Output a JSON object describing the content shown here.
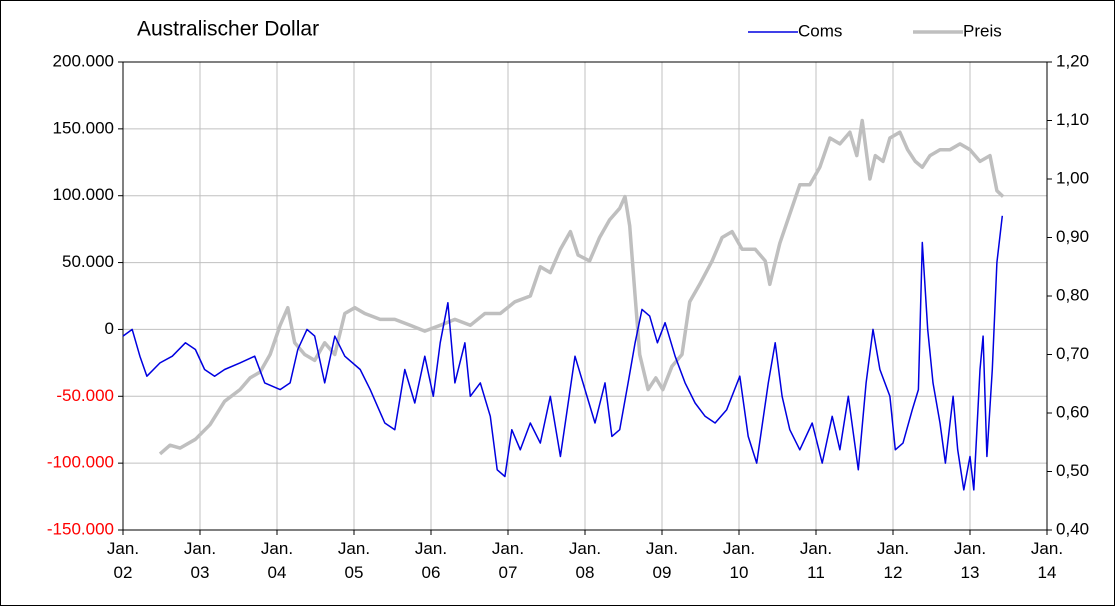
{
  "chart_data": {
    "type": "line",
    "title": "Australischer Dollar",
    "grid": true,
    "legend": "top-right",
    "negative_label_color": "#ff0000",
    "xlim": [
      2002,
      2014
    ],
    "xticks": [
      {
        "value": 2002,
        "label": "Jan. 02"
      },
      {
        "value": 2003,
        "label": "Jan. 03"
      },
      {
        "value": 2004,
        "label": "Jan. 04"
      },
      {
        "value": 2005,
        "label": "Jan. 05"
      },
      {
        "value": 2006,
        "label": "Jan. 06"
      },
      {
        "value": 2007,
        "label": "Jan. 07"
      },
      {
        "value": 2008,
        "label": "Jan. 08"
      },
      {
        "value": 2009,
        "label": "Jan. 09"
      },
      {
        "value": 2010,
        "label": "Jan. 10"
      },
      {
        "value": 2011,
        "label": "Jan. 11"
      },
      {
        "value": 2012,
        "label": "Jan. 12"
      },
      {
        "value": 2013,
        "label": "Jan. 13"
      },
      {
        "value": 2014,
        "label": "Jan. 14"
      }
    ],
    "ylim": [
      -150000,
      200000
    ],
    "yticks": [
      {
        "value": -150000,
        "label": "-150.000"
      },
      {
        "value": -100000,
        "label": "-100.000"
      },
      {
        "value": -50000,
        "label": "-50.000"
      },
      0,
      {
        "value": 50000,
        "label": "50.000"
      },
      {
        "value": 100000,
        "label": "100.000"
      },
      {
        "value": 150000,
        "label": "150.000"
      },
      {
        "value": 200000,
        "label": "200.000"
      }
    ],
    "y2lim": [
      0.4,
      1.2
    ],
    "y2ticks": [
      {
        "value": 0.4,
        "label": "0,40"
      },
      {
        "value": 0.5,
        "label": "0,50"
      },
      {
        "value": 0.6,
        "label": "0,60"
      },
      {
        "value": 0.7,
        "label": "0,70"
      },
      {
        "value": 0.8,
        "label": "0,80"
      },
      {
        "value": 0.9,
        "label": "0,90"
      },
      {
        "value": 1.0,
        "label": "1,00"
      },
      {
        "value": 1.1,
        "label": "1,10"
      },
      {
        "value": 1.2,
        "label": "1,20"
      }
    ],
    "series": [
      {
        "name": "Preis",
        "color": "#bfbfbf",
        "axis": "y2",
        "x": [
          2002.48,
          2002.61,
          2002.74,
          2002.94,
          2003.13,
          2003.32,
          2003.52,
          2003.65,
          2003.78,
          2003.91,
          2004.04,
          2004.14,
          2004.23,
          2004.36,
          2004.49,
          2004.62,
          2004.75,
          2004.88,
          2005.01,
          2005.14,
          2005.34,
          2005.53,
          2005.73,
          2005.92,
          2006.12,
          2006.31,
          2006.51,
          2006.7,
          2006.9,
          2007.09,
          2007.29,
          2007.42,
          2007.55,
          2007.68,
          2007.81,
          2007.91,
          2008.06,
          2008.19,
          2008.32,
          2008.45,
          2008.52,
          2008.58,
          2008.65,
          2008.71,
          2008.82,
          2008.92,
          2009.01,
          2009.13,
          2009.26,
          2009.36,
          2009.49,
          2009.65,
          2009.78,
          2009.91,
          2010.04,
          2010.21,
          2010.34,
          2010.4,
          2010.53,
          2010.66,
          2010.79,
          2010.92,
          2011.05,
          2011.18,
          2011.31,
          2011.44,
          2011.53,
          2011.6,
          2011.7,
          2011.77,
          2011.87,
          2011.96,
          2012.09,
          2012.19,
          2012.29,
          2012.38,
          2012.48,
          2012.61,
          2012.74,
          2012.87,
          2013.0,
          2013.13,
          2013.26,
          2013.35,
          2013.43
        ],
        "values": [
          0.53,
          0.545,
          0.54,
          0.555,
          0.58,
          0.62,
          0.64,
          0.66,
          0.67,
          0.7,
          0.75,
          0.78,
          0.72,
          0.7,
          0.69,
          0.72,
          0.7,
          0.77,
          0.78,
          0.77,
          0.76,
          0.76,
          0.75,
          0.74,
          0.75,
          0.76,
          0.75,
          0.77,
          0.77,
          0.79,
          0.8,
          0.85,
          0.84,
          0.88,
          0.91,
          0.87,
          0.86,
          0.9,
          0.93,
          0.95,
          0.97,
          0.92,
          0.8,
          0.7,
          0.64,
          0.66,
          0.64,
          0.68,
          0.7,
          0.79,
          0.82,
          0.86,
          0.9,
          0.91,
          0.88,
          0.88,
          0.86,
          0.82,
          0.89,
          0.94,
          0.99,
          0.99,
          1.02,
          1.07,
          1.06,
          1.08,
          1.04,
          1.1,
          1.0,
          1.04,
          1.03,
          1.07,
          1.08,
          1.05,
          1.03,
          1.02,
          1.04,
          1.05,
          1.05,
          1.06,
          1.05,
          1.03,
          1.04,
          0.98,
          0.97
        ]
      },
      {
        "name": "Coms",
        "color": "#0000e0",
        "x": [
          2002.0,
          2002.12,
          2002.22,
          2002.31,
          2002.48,
          2002.64,
          2002.81,
          2002.94,
          2003.06,
          2003.19,
          2003.32,
          2003.52,
          2003.71,
          2003.84,
          2004.04,
          2004.17,
          2004.27,
          2004.39,
          2004.49,
          2004.62,
          2004.75,
          2004.88,
          2005.08,
          2005.21,
          2005.4,
          2005.53,
          2005.66,
          2005.79,
          2005.92,
          2006.03,
          2006.12,
          2006.22,
          2006.31,
          2006.44,
          2006.51,
          2006.64,
          2006.77,
          2006.86,
          2006.96,
          2007.05,
          2007.16,
          2007.29,
          2007.42,
          2007.55,
          2007.68,
          2007.87,
          2008.0,
          2008.13,
          2008.26,
          2008.35,
          2008.45,
          2008.56,
          2008.65,
          2008.74,
          2008.84,
          2008.94,
          2009.04,
          2009.17,
          2009.3,
          2009.43,
          2009.56,
          2009.69,
          2009.84,
          2010.01,
          2010.12,
          2010.23,
          2010.38,
          2010.47,
          2010.56,
          2010.66,
          2010.79,
          2010.95,
          2011.08,
          2011.21,
          2011.31,
          2011.42,
          2011.55,
          2011.65,
          2011.74,
          2011.83,
          2011.96,
          2012.03,
          2012.13,
          2012.25,
          2012.33,
          2012.38,
          2012.45,
          2012.52,
          2012.61,
          2012.68,
          2012.78,
          2012.84,
          2012.92,
          2013.0,
          2013.05,
          2013.13,
          2013.17,
          2013.22,
          2013.29,
          2013.35,
          2013.42
        ],
        "values": [
          -5000,
          0,
          -20000,
          -35000,
          -25000,
          -20000,
          -10000,
          -15000,
          -30000,
          -35000,
          -30000,
          -25000,
          -20000,
          -40000,
          -45000,
          -40000,
          -15000,
          0,
          -5000,
          -40000,
          -5000,
          -20000,
          -30000,
          -45000,
          -70000,
          -75000,
          -30000,
          -55000,
          -20000,
          -50000,
          -10000,
          20000,
          -40000,
          -10000,
          -50000,
          -40000,
          -65000,
          -105000,
          -110000,
          -75000,
          -90000,
          -70000,
          -85000,
          -50000,
          -95000,
          -20000,
          -45000,
          -70000,
          -40000,
          -80000,
          -75000,
          -40000,
          -10000,
          15000,
          10000,
          -10000,
          5000,
          -20000,
          -40000,
          -55000,
          -65000,
          -70000,
          -60000,
          -35000,
          -80000,
          -100000,
          -40000,
          -10000,
          -50000,
          -75000,
          -90000,
          -70000,
          -100000,
          -65000,
          -90000,
          -50000,
          -105000,
          -40000,
          0,
          -30000,
          -50000,
          -90000,
          -85000,
          -60000,
          -45000,
          65000,
          0,
          -40000,
          -70000,
          -100000,
          -50000,
          -90000,
          -120000,
          -95000,
          -120000,
          -30000,
          -5000,
          -95000,
          -30000,
          50000,
          85000
        ]
      }
    ]
  }
}
